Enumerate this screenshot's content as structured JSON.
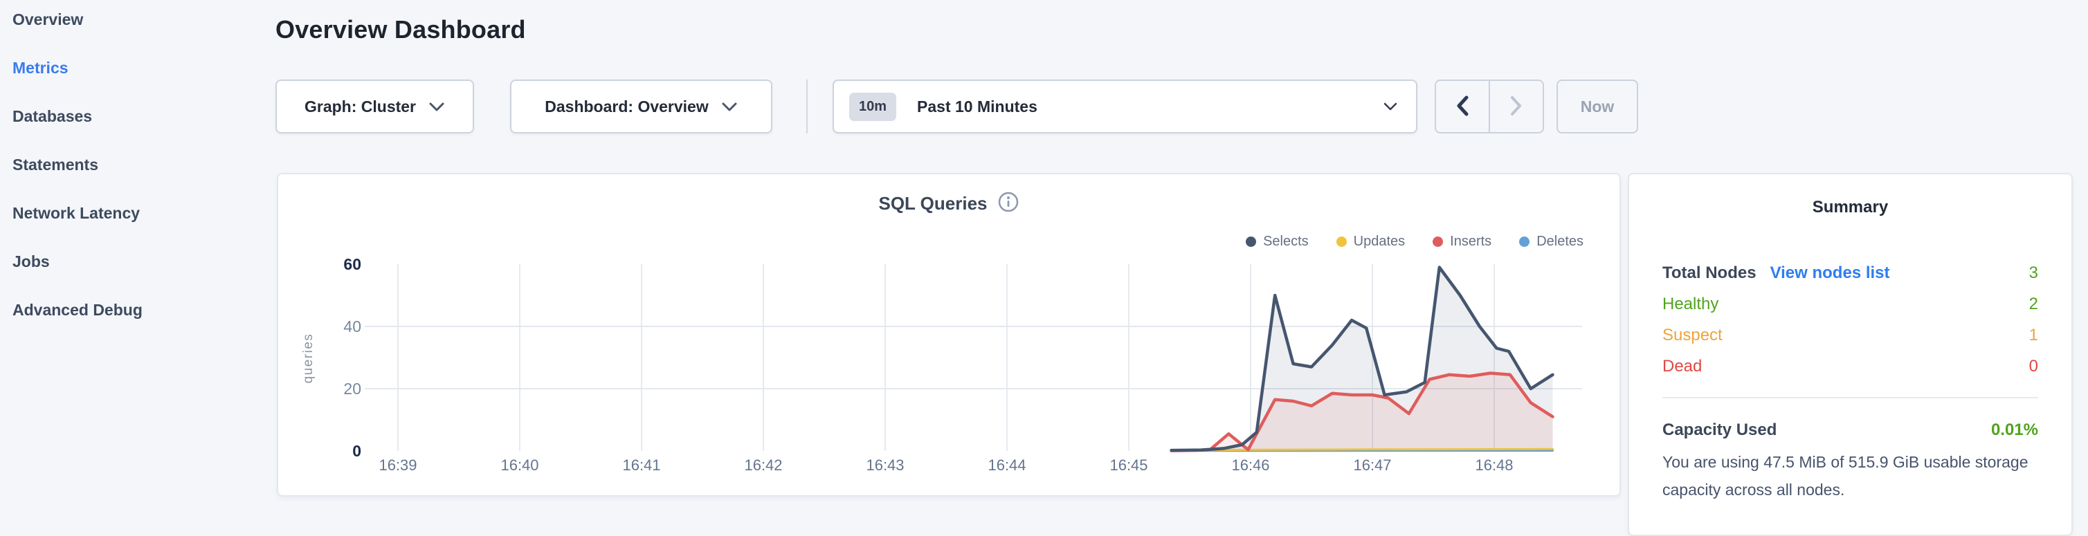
{
  "header": {
    "title": "Overview Dashboard"
  },
  "sidebar": {
    "items": [
      {
        "label": "Overview",
        "active": false
      },
      {
        "label": "Metrics",
        "active": true
      },
      {
        "label": "Databases",
        "active": false
      },
      {
        "label": "Statements",
        "active": false
      },
      {
        "label": "Network Latency",
        "active": false
      },
      {
        "label": "Jobs",
        "active": false
      },
      {
        "label": "Advanced Debug",
        "active": false
      }
    ]
  },
  "controls": {
    "graph_dropdown": {
      "label": "Graph: Cluster"
    },
    "dashboard_dropdown": {
      "label": "Dashboard: Overview"
    },
    "time_window": {
      "badge": "10m",
      "label": "Past 10 Minutes"
    },
    "now_button": "Now"
  },
  "chart_card": {
    "title": "SQL Queries",
    "info_icon": "info-circle"
  },
  "chart_data": {
    "type": "area",
    "title": "SQL Queries",
    "xlabel": "",
    "ylabel": "queries",
    "ylim": [
      0,
      60
    ],
    "yticks": [
      0,
      20,
      40,
      60
    ],
    "grid_yticks": [
      20,
      40
    ],
    "xticks": [
      "16:39",
      "16:40",
      "16:41",
      "16:42",
      "16:43",
      "16:44",
      "16:45",
      "16:46",
      "16:47",
      "16:48"
    ],
    "grid": "on",
    "legend_position": "top-right",
    "x_unit": "minutes after 16:39",
    "series": [
      {
        "name": "Selects",
        "color": "#46566f",
        "fill": "rgba(71,87,115,0.10)",
        "points": [
          [
            6.35,
            0.2
          ],
          [
            6.6,
            0.3
          ],
          [
            6.78,
            0.8
          ],
          [
            6.93,
            2
          ],
          [
            7.05,
            6
          ],
          [
            7.2,
            50
          ],
          [
            7.35,
            28
          ],
          [
            7.5,
            27
          ],
          [
            7.67,
            34
          ],
          [
            7.83,
            42
          ],
          [
            7.95,
            39.5
          ],
          [
            8.1,
            18
          ],
          [
            8.28,
            19
          ],
          [
            8.43,
            22
          ],
          [
            8.55,
            59
          ],
          [
            8.72,
            50
          ],
          [
            8.88,
            40
          ],
          [
            9.02,
            33
          ],
          [
            9.12,
            32
          ],
          [
            9.3,
            20
          ],
          [
            9.48,
            24.5
          ]
        ]
      },
      {
        "name": "Updates",
        "color": "#f0c33c",
        "fill": "none",
        "points": [
          [
            6.35,
            0.15
          ],
          [
            7.0,
            0.35
          ],
          [
            8.0,
            0.5
          ],
          [
            9.48,
            0.6
          ]
        ]
      },
      {
        "name": "Inserts",
        "color": "#e05c5c",
        "fill": "rgba(224,92,92,0.10)",
        "points": [
          [
            6.35,
            0.1
          ],
          [
            6.55,
            0.2
          ],
          [
            6.67,
            0.5
          ],
          [
            6.82,
            5.5
          ],
          [
            6.98,
            0.4
          ],
          [
            7.2,
            16.5
          ],
          [
            7.35,
            16
          ],
          [
            7.5,
            14.5
          ],
          [
            7.67,
            18.5
          ],
          [
            7.83,
            18
          ],
          [
            8.0,
            18
          ],
          [
            8.13,
            17
          ],
          [
            8.3,
            12
          ],
          [
            8.47,
            23
          ],
          [
            8.63,
            24.5
          ],
          [
            8.8,
            24
          ],
          [
            8.97,
            25
          ],
          [
            9.13,
            24.5
          ],
          [
            9.3,
            15.5
          ],
          [
            9.48,
            11
          ]
        ]
      },
      {
        "name": "Deletes",
        "color": "#62a0d6",
        "fill": "none",
        "points": [
          [
            6.35,
            0.05
          ],
          [
            9.48,
            0.1
          ]
        ]
      }
    ]
  },
  "summary": {
    "title": "Summary",
    "total_nodes_label": "Total Nodes",
    "view_nodes_link": "View nodes list",
    "total_nodes_value": "3",
    "rows": [
      {
        "label": "Healthy",
        "value": "2",
        "color": "#51a31e"
      },
      {
        "label": "Suspect",
        "value": "1",
        "color": "#eda43c"
      },
      {
        "label": "Dead",
        "value": "0",
        "color": "#e14844"
      }
    ],
    "total_color": "#51a31e",
    "capacity_label": "Capacity Used",
    "capacity_value": "0.01%",
    "capacity_color": "#51a31e",
    "capacity_description": "You are using 47.5 MiB of 515.9 GiB usable storage capacity across all nodes."
  }
}
